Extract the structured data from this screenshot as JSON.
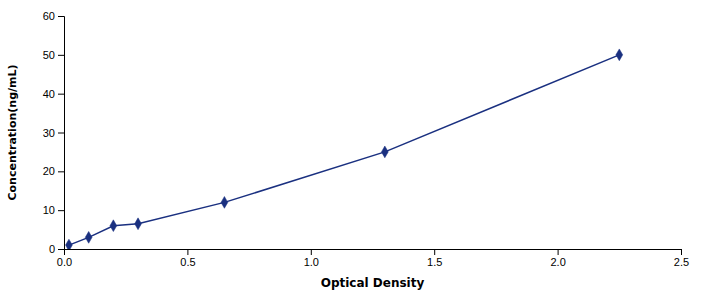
{
  "chart_data": {
    "type": "line",
    "x": [
      0.02,
      0.1,
      0.2,
      0.3,
      0.65,
      1.3,
      2.25
    ],
    "values": [
      1.0,
      3.0,
      6.0,
      6.5,
      12.0,
      25.0,
      50.0
    ],
    "color": "#1a3080",
    "marker": "diamond",
    "line_style": "solid",
    "xlabel": "Optical Density",
    "ylabel": "Concentration(ng/mL)",
    "xlim": [
      0,
      2.5
    ],
    "ylim": [
      0,
      60
    ],
    "xticks": [
      {
        "value": 0,
        "label": "0.0"
      },
      {
        "value": 0.5,
        "label": "0.5"
      },
      {
        "value": 1.0,
        "label": "1.0"
      },
      {
        "value": 1.5,
        "label": "1.5"
      },
      {
        "value": 2.0,
        "label": "2.0"
      },
      {
        "value": 2.5,
        "label": "2.5"
      }
    ],
    "yticks": [
      0,
      10,
      20,
      30,
      40,
      50,
      60
    ],
    "grid": false
  }
}
